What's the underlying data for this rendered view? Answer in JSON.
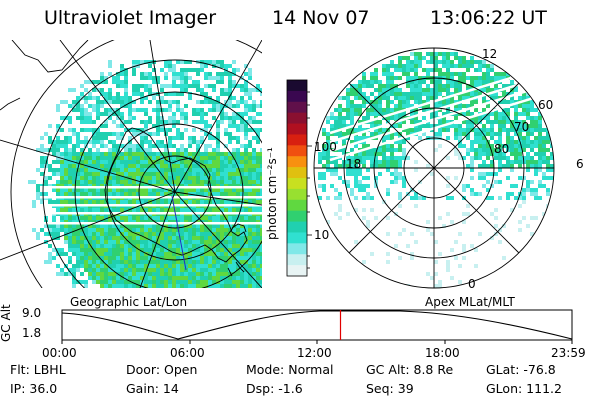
{
  "header": {
    "title": "Ultraviolet Imager",
    "date": "14 Nov 07",
    "time": "13:06:22 UT"
  },
  "colorbar": {
    "unit_label": "photon cm⁻²s⁻¹",
    "ticks": [
      "100",
      "10"
    ],
    "colors": [
      "#1a0a30",
      "#3a0850",
      "#60104a",
      "#8a1030",
      "#b01020",
      "#d82010",
      "#f05010",
      "#f89010",
      "#e0c010",
      "#c8e020",
      "#98e030",
      "#60d840",
      "#30d070",
      "#20d0b0",
      "#30e0d0",
      "#80e8e8",
      "#c8f0f0",
      "#e8f4f4"
    ]
  },
  "left_panel": {
    "label": "Geographic Lat/Lon"
  },
  "right_panel": {
    "label": "Apex MLat/MLT",
    "mlt_labels": {
      "top": "12",
      "left": "18",
      "right": "6",
      "bottom": "0"
    },
    "lat_labels": [
      "60",
      "70",
      "80"
    ]
  },
  "altitude_plot": {
    "ylabel": "GC Alt",
    "yticks": [
      "9.0",
      "1.8"
    ],
    "xticks": [
      "00:00",
      "06:00",
      "12:00",
      "18:00",
      "23:59"
    ],
    "marker_color": "#e00000",
    "marker_time_hours": 13.106
  },
  "info": {
    "flt": "Flt: LBHL",
    "door": "Door: Open",
    "mode": "Mode: Normal",
    "gc_alt": "GC Alt: 8.8 Re",
    "glat": "GLat: -76.8",
    "ip": "IP: 36.0",
    "gain": "Gain: 14",
    "dsp": "Dsp:   -1.6",
    "seq": "Seq: 39",
    "glon": "GLon: 111.2"
  }
}
